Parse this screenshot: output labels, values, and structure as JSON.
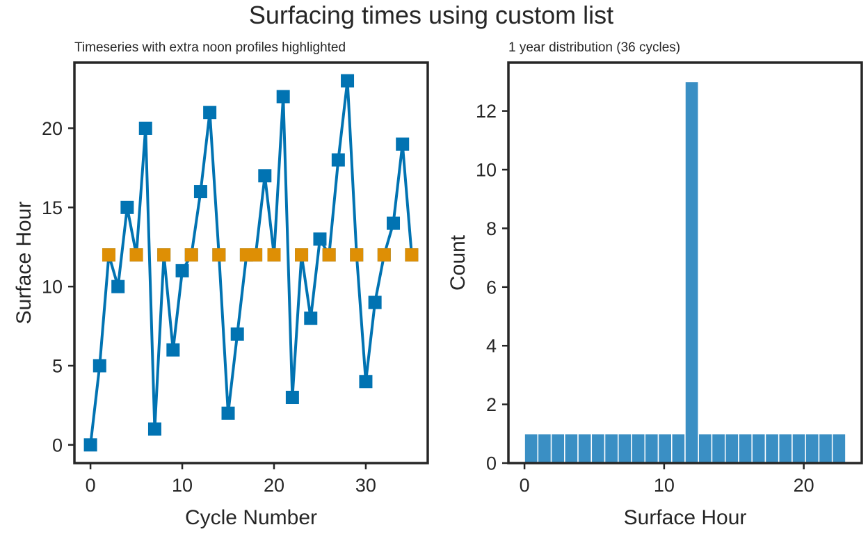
{
  "figure": {
    "title": "Surfacing times using custom list"
  },
  "chart_data": [
    {
      "type": "line",
      "title": "Timeseries with extra noon profiles highlighted",
      "xlabel": "Cycle Number",
      "ylabel": "Surface Hour",
      "xlim": [
        -1.75,
        36.75
      ],
      "ylim": [
        -1.15,
        24.15
      ],
      "xticks": [
        0,
        10,
        20,
        30
      ],
      "yticks": [
        0,
        5,
        10,
        15,
        20
      ],
      "series": [
        {
          "color": "#0173b2",
          "marker": "square",
          "line": true,
          "x": [
            0,
            1,
            2,
            3,
            4,
            5,
            6,
            7,
            8,
            9,
            10,
            11,
            12,
            13,
            14,
            15,
            16,
            17,
            18,
            19,
            20,
            21,
            22,
            23,
            24,
            25,
            26,
            27,
            28,
            29,
            30,
            31,
            32,
            33,
            34,
            35
          ],
          "y": [
            0,
            5,
            12,
            10,
            15,
            12,
            20,
            1,
            12,
            6,
            11,
            12,
            16,
            21,
            12,
            2,
            7,
            12,
            12,
            17,
            12,
            22,
            3,
            12,
            8,
            13,
            12,
            18,
            23,
            12,
            4,
            9,
            12,
            14,
            19,
            12
          ]
        },
        {
          "color": "#de8f05",
          "marker": "square",
          "line": false,
          "x": [
            2,
            5,
            8,
            11,
            14,
            17,
            18,
            20,
            23,
            26,
            29,
            32,
            35
          ],
          "y": [
            12,
            12,
            12,
            12,
            12,
            12,
            12,
            12,
            12,
            12,
            12,
            12,
            12
          ]
        }
      ]
    },
    {
      "type": "bar",
      "title": "1 year distribution (36 cycles)",
      "xlabel": "Surface Hour",
      "ylabel": "Count",
      "xlim": [
        -1.15,
        24.15
      ],
      "ylim": [
        0,
        13.65
      ],
      "xticks": [
        0,
        10,
        20
      ],
      "yticks": [
        0,
        2,
        4,
        6,
        8,
        10,
        12
      ],
      "color": "#3a8fc4",
      "bin_edges": [
        0,
        0.9583,
        1.9167,
        2.875,
        3.8333,
        4.7917,
        5.75,
        6.7083,
        7.6667,
        8.625,
        9.5833,
        10.5417,
        11.5,
        12.4583,
        13.4167,
        14.375,
        15.3333,
        16.2917,
        17.25,
        18.2083,
        19.1667,
        20.125,
        21.0833,
        22.0417,
        23
      ],
      "counts": [
        1,
        1,
        1,
        1,
        1,
        1,
        1,
        1,
        1,
        1,
        1,
        1,
        13,
        1,
        1,
        1,
        1,
        1,
        1,
        1,
        1,
        1,
        1,
        1
      ]
    }
  ]
}
